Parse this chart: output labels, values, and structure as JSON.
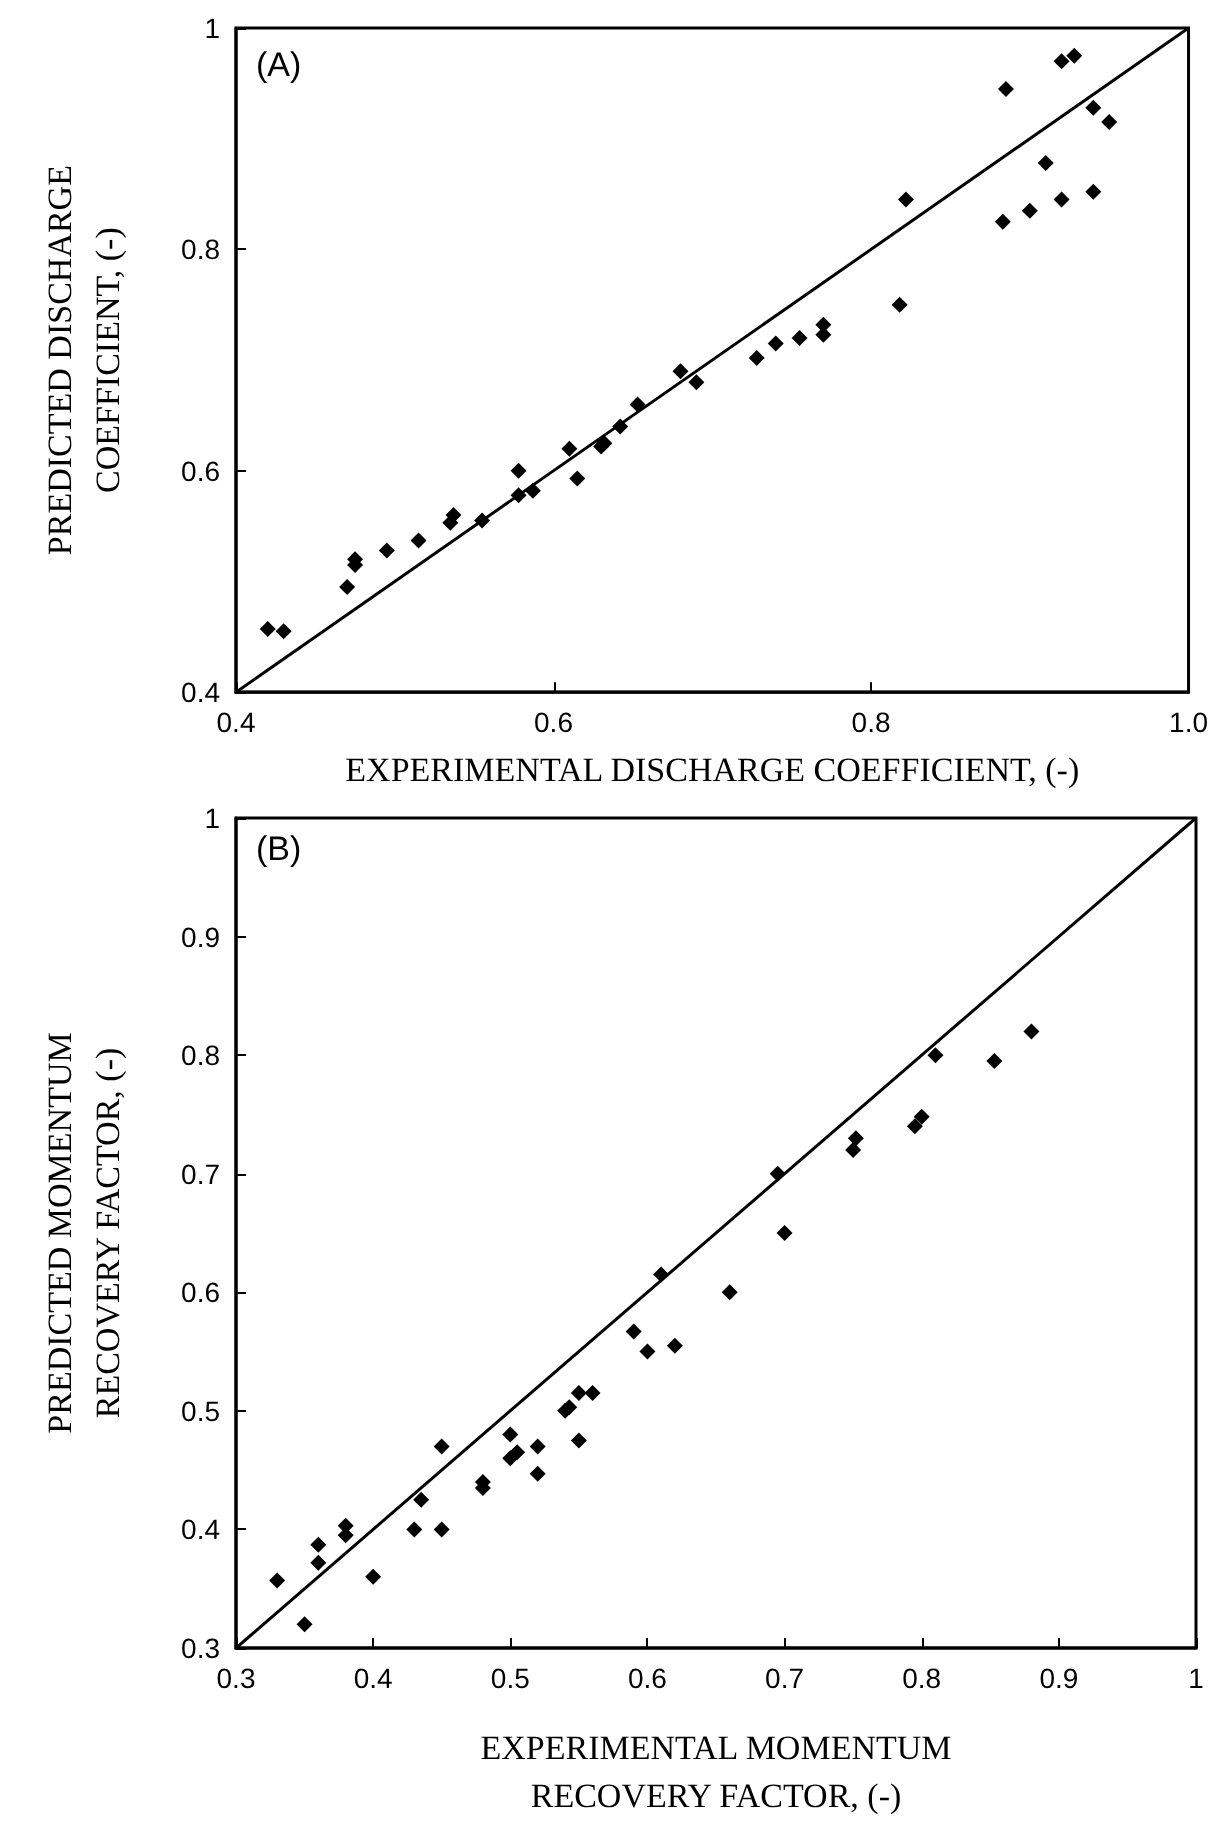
{
  "chart_data": [
    {
      "type": "scatter",
      "xlabel": "EXPERIMENTAL DISCHARGE COEFFICIENT, (-)",
      "ylabel": "PREDICTED DISCHARGE\nCOEFFICIENT, (-)",
      "annotations": [
        "(A)"
      ],
      "xlim": [
        0.4,
        1
      ],
      "ylim": [
        0.4,
        1
      ],
      "xticks": [
        0.4,
        0.6,
        0.8,
        {
          "value": 1,
          "label": "1.0"
        }
      ],
      "yticks": [
        0.4,
        0.6,
        0.8,
        1
      ],
      "grid": false,
      "marker": "diamond",
      "series": [
        {
          "color": "#000000",
          "x": [
            0.42,
            0.43,
            0.47,
            0.475,
            0.475,
            0.495,
            0.515,
            0.535,
            0.537,
            0.555,
            0.578,
            0.578,
            0.587,
            0.61,
            0.615,
            0.63,
            0.632,
            0.642,
            0.653,
            0.68,
            0.69,
            0.728,
            0.74,
            0.755,
            0.77,
            0.77,
            0.818,
            0.822,
            0.883,
            0.885,
            0.9,
            0.91,
            0.92,
            0.92,
            0.928,
            0.94,
            0.94,
            0.95
          ],
          "values": [
            0.457,
            0.455,
            0.495,
            0.515,
            0.52,
            0.528,
            0.537,
            0.553,
            0.56,
            0.555,
            0.578,
            0.6,
            0.582,
            0.62,
            0.593,
            0.622,
            0.625,
            0.64,
            0.66,
            0.69,
            0.68,
            0.702,
            0.715,
            0.72,
            0.723,
            0.732,
            0.75,
            0.845,
            0.825,
            0.945,
            0.835,
            0.878,
            0.845,
            0.97,
            0.975,
            0.928,
            0.852,
            0.915
          ]
        },
        {
          "type": "line",
          "color": "#000000",
          "marker": "none",
          "x": [
            0.4,
            1
          ],
          "values": [
            0.4,
            1
          ]
        }
      ]
    },
    {
      "type": "scatter",
      "xlabel": "EXPERIMENTAL MOMENTUM\nRECOVERY FACTOR, (-)",
      "ylabel": "PREDICTED MOMENTUM\nRECOVERY FACTOR, (-)",
      "annotations": [
        "(B)"
      ],
      "xlim": [
        0.3,
        1
      ],
      "ylim": [
        0.3,
        1
      ],
      "xticks": [
        0.3,
        0.4,
        0.5,
        0.6,
        0.7,
        0.8,
        0.9,
        1
      ],
      "yticks": [
        0.3,
        0.4,
        0.5,
        0.6,
        0.7,
        0.8,
        0.9,
        1
      ],
      "grid": false,
      "marker": "diamond",
      "series": [
        {
          "color": "#000000",
          "x": [
            0.33,
            0.35,
            0.36,
            0.36,
            0.38,
            0.38,
            0.4,
            0.43,
            0.435,
            0.45,
            0.45,
            0.48,
            0.48,
            0.5,
            0.5,
            0.505,
            0.52,
            0.52,
            0.54,
            0.543,
            0.55,
            0.55,
            0.56,
            0.59,
            0.6,
            0.61,
            0.62,
            0.66,
            0.695,
            0.7,
            0.75,
            0.752,
            0.795,
            0.8,
            0.81,
            0.853,
            0.88
          ],
          "values": [
            0.357,
            0.32,
            0.372,
            0.387,
            0.395,
            0.403,
            0.36,
            0.4,
            0.425,
            0.47,
            0.4,
            0.435,
            0.44,
            0.46,
            0.48,
            0.465,
            0.47,
            0.447,
            0.5,
            0.503,
            0.515,
            0.475,
            0.515,
            0.567,
            0.55,
            0.615,
            0.555,
            0.6,
            0.7,
            0.65,
            0.72,
            0.73,
            0.74,
            0.748,
            0.8,
            0.795,
            0.82
          ]
        },
        {
          "type": "line",
          "color": "#000000",
          "marker": "none",
          "x": [
            0.3,
            1
          ],
          "values": [
            0.3,
            1
          ]
        }
      ]
    }
  ]
}
